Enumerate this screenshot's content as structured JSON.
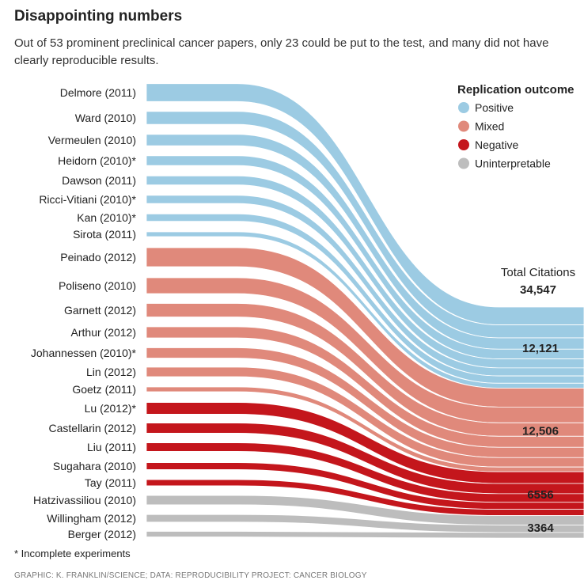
{
  "title": "Disappointing numbers",
  "subtitle": "Out of 53 prominent preclinical cancer papers, only 23 could be put to the test, and many did not have clearly reproducible results.",
  "footnote": "* Incomplete experiments",
  "credit": "GRAPHIC: K. FRANKLIN/SCIENCE; DATA: REPRODUCIBILITY PROJECT: CANCER BIOLOGY",
  "chart_data": {
    "type": "sankey",
    "title": "Disappointing numbers",
    "legend": {
      "title": "Replication outcome",
      "placement": "top-right",
      "entries": [
        {
          "key": "positive",
          "label": "Positive",
          "color": "#9ccbe3"
        },
        {
          "key": "mixed",
          "label": "Mixed",
          "color": "#e0897b"
        },
        {
          "key": "negative",
          "label": "Negative",
          "color": "#c4161c"
        },
        {
          "key": "uninterpretable",
          "label": "Uninterpretable",
          "color": "#bdbdbd"
        }
      ]
    },
    "total_label": "Total Citations",
    "total_value": "34,547",
    "totals": [
      {
        "key": "positive",
        "label": "12,121",
        "value": 12121
      },
      {
        "key": "mixed",
        "label": "12,506",
        "value": 12506
      },
      {
        "key": "negative",
        "label": "6556",
        "value": 6556
      },
      {
        "key": "uninterpretable",
        "label": "3364",
        "value": 3364
      }
    ],
    "papers": [
      {
        "label": "Delmore (2011)",
        "outcome": "positive",
        "citations": 2667
      },
      {
        "label": "Ward (2010)",
        "outcome": "positive",
        "citations": 1939
      },
      {
        "label": "Vermeulen (2010)",
        "outcome": "positive",
        "citations": 1697
      },
      {
        "label": "Heidorn (2010)*",
        "outcome": "positive",
        "citations": 1455
      },
      {
        "label": "Dawson (2011)",
        "outcome": "positive",
        "citations": 1333
      },
      {
        "label": "Ricci-Vitiani (2010)*",
        "outcome": "positive",
        "citations": 1212
      },
      {
        "label": "Kan (2010)*",
        "outcome": "positive",
        "citations": 1091
      },
      {
        "label": "Sirota (2011)",
        "outcome": "positive",
        "citations": 727
      },
      {
        "label": "Peinado (2012)",
        "outcome": "mixed",
        "citations": 2832
      },
      {
        "label": "Poliseno (2010)",
        "outcome": "mixed",
        "citations": 2360
      },
      {
        "label": "Garnett (2012)",
        "outcome": "mixed",
        "citations": 2006
      },
      {
        "label": "Arthur (2012)",
        "outcome": "mixed",
        "citations": 1652
      },
      {
        "label": "Johannessen (2010)*",
        "outcome": "mixed",
        "citations": 1534
      },
      {
        "label": "Lin (2012)",
        "outcome": "mixed",
        "citations": 1416
      },
      {
        "label": "Goetz (2011)",
        "outcome": "mixed",
        "citations": 706
      },
      {
        "label": "Lu (2012)*",
        "outcome": "negative",
        "citations": 1756
      },
      {
        "label": "Castellarin (2012)",
        "outcome": "negative",
        "citations": 1522
      },
      {
        "label": "Liu (2011)",
        "outcome": "negative",
        "citations": 1288
      },
      {
        "label": "Sugahara (2010)",
        "outcome": "negative",
        "citations": 1054
      },
      {
        "label": "Tay (2011)",
        "outcome": "negative",
        "citations": 936
      },
      {
        "label": "Hatzivassiliou (2010)",
        "outcome": "uninterpretable",
        "citations": 1402
      },
      {
        "label": "Willingham (2012)",
        "outcome": "uninterpretable",
        "citations": 1121
      },
      {
        "label": "Berger (2012)",
        "outcome": "uninterpretable",
        "citations": 841
      }
    ]
  }
}
